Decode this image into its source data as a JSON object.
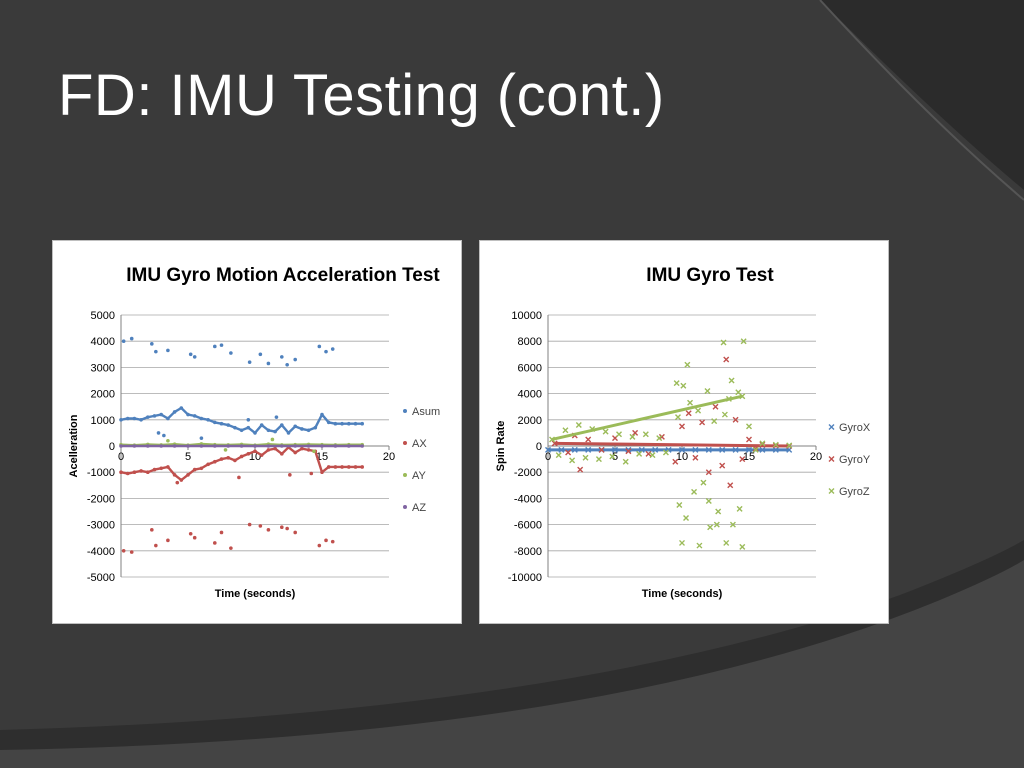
{
  "slide": {
    "title": "FD: IMU Testing (cont.)"
  },
  "colors": {
    "background": "#3a3a3a",
    "arc": "#2b2b2b",
    "arc_light": "#4a4a4a"
  },
  "chart_data": [
    {
      "type": "scatter",
      "title": "IMU Gyro Motion Acceleration Test",
      "xlabel": "Time (seconds)",
      "ylabel": "Acelleration",
      "xlim": [
        0,
        20
      ],
      "ylim": [
        -5000,
        5000
      ],
      "x_ticks": [
        "0",
        "5",
        "10",
        "15",
        "20"
      ],
      "y_ticks": [
        "5000",
        "4000",
        "3000",
        "2000",
        "1000",
        "0",
        "-1000",
        "-2000",
        "-3000",
        "-4000",
        "-5000"
      ],
      "grid": "horizontal",
      "legend": "right",
      "series": [
        {
          "name": "Asum",
          "color": "#4f81bd",
          "marker": "dot",
          "x": [
            0.0,
            0.5,
            1.0,
            1.5,
            2.0,
            2.5,
            3.0,
            3.5,
            4.0,
            4.5,
            5.0,
            5.5,
            6.0,
            6.5,
            7.0,
            7.5,
            8.0,
            8.5,
            9.0,
            9.5,
            10.0,
            10.5,
            11.0,
            11.5,
            12.0,
            12.5,
            13.0,
            13.5,
            14.0,
            14.5,
            15.0,
            15.5,
            16.0,
            16.5,
            17.0,
            17.5,
            18.0,
            0.2,
            0.8,
            2.3,
            2.6,
            3.5,
            5.2,
            5.5,
            7.0,
            7.5,
            8.2,
            9.6,
            10.4,
            11.0,
            12.0,
            12.4,
            13.0,
            14.8,
            15.3,
            15.8,
            2.8,
            3.2,
            6.0,
            9.5,
            11.6
          ],
          "y": [
            1000,
            1050,
            1050,
            1000,
            1100,
            1150,
            1200,
            1050,
            1300,
            1450,
            1200,
            1150,
            1050,
            1000,
            900,
            850,
            800,
            700,
            600,
            700,
            500,
            800,
            600,
            550,
            800,
            500,
            750,
            650,
            600,
            700,
            1200,
            900,
            850,
            850,
            850,
            850,
            850,
            4000,
            4100,
            3900,
            3600,
            3650,
            3500,
            3400,
            3800,
            3850,
            3550,
            3200,
            3500,
            3150,
            3400,
            3100,
            3300,
            3800,
            3600,
            3700,
            500,
            400,
            300,
            1000,
            1100
          ]
        },
        {
          "name": "AX",
          "color": "#c0504d",
          "marker": "dot",
          "x": [
            0.0,
            0.5,
            1.0,
            1.5,
            2.0,
            2.5,
            3.0,
            3.5,
            4.0,
            4.5,
            5.0,
            5.5,
            6.0,
            6.5,
            7.0,
            7.5,
            8.0,
            8.5,
            9.0,
            9.5,
            10.0,
            10.5,
            11.0,
            11.5,
            12.0,
            12.5,
            13.0,
            13.5,
            14.0,
            14.5,
            15.0,
            15.5,
            16.0,
            16.5,
            17.0,
            17.5,
            18.0,
            0.2,
            0.8,
            2.3,
            2.6,
            3.5,
            5.2,
            5.5,
            7.0,
            7.5,
            8.2,
            9.6,
            10.4,
            11.0,
            12.0,
            12.4,
            13.0,
            14.8,
            15.3,
            15.8,
            4.2,
            8.8,
            12.6,
            14.2
          ],
          "y": [
            -1000,
            -1050,
            -1000,
            -950,
            -1000,
            -900,
            -850,
            -800,
            -1100,
            -1300,
            -1100,
            -900,
            -850,
            -700,
            -600,
            -500,
            -450,
            -550,
            -400,
            -300,
            -200,
            -350,
            -150,
            -100,
            -300,
            -50,
            -250,
            -100,
            -150,
            -200,
            -1000,
            -800,
            -800,
            -800,
            -800,
            -800,
            -800,
            -4000,
            -4050,
            -3200,
            -3800,
            -3600,
            -3350,
            -3500,
            -3700,
            -3300,
            -3900,
            -3000,
            -3050,
            -3200,
            -3100,
            -3150,
            -3300,
            -3800,
            -3600,
            -3650,
            -1400,
            -1200,
            -1100,
            -1050
          ]
        },
        {
          "name": "AY",
          "color": "#9bbb59",
          "marker": "dot",
          "x": [
            0,
            1,
            2,
            3,
            4,
            5,
            6,
            7,
            8,
            9,
            10,
            11,
            12,
            13,
            14,
            15,
            16,
            17,
            18,
            3.5,
            7.8,
            11.3,
            14.4
          ],
          "y": [
            50,
            30,
            60,
            40,
            70,
            30,
            80,
            50,
            40,
            60,
            30,
            70,
            40,
            50,
            60,
            50,
            40,
            50,
            50,
            200,
            -150,
            250,
            -200
          ]
        },
        {
          "name": "AZ",
          "color": "#8064a2",
          "marker": "dot",
          "x": [
            0,
            1,
            2,
            3,
            4,
            5,
            6,
            7,
            8,
            9,
            10,
            11,
            12,
            13,
            14,
            15,
            16,
            17,
            18
          ],
          "y": [
            0,
            0,
            0,
            0,
            0,
            0,
            0,
            0,
            0,
            0,
            0,
            0,
            0,
            0,
            0,
            0,
            0,
            0,
            0
          ]
        }
      ]
    },
    {
      "type": "scatter",
      "title": "IMU Gyro Test",
      "xlabel": "Time (seconds)",
      "ylabel": "Spin Rate",
      "xlim": [
        0,
        20
      ],
      "ylim": [
        -10000,
        10000
      ],
      "x_ticks": [
        "0",
        "5",
        "10",
        "15",
        "20"
      ],
      "y_ticks": [
        "10000",
        "8000",
        "6000",
        "4000",
        "2000",
        "0",
        "-2000",
        "-4000",
        "-6000",
        "-8000",
        "-10000"
      ],
      "grid": "horizontal",
      "legend": "right",
      "series": [
        {
          "name": "GyroX",
          "color": "#4f81bd",
          "marker": "x",
          "x": [
            0,
            1,
            2,
            3,
            4,
            5,
            6,
            7,
            8,
            9,
            10,
            11,
            12,
            13,
            14,
            15,
            16,
            17,
            18
          ],
          "y": [
            -300,
            -300,
            -300,
            -300,
            -300,
            -300,
            -300,
            -300,
            -300,
            -300,
            -300,
            -300,
            -300,
            -300,
            -300,
            -300,
            -300,
            -300,
            -300
          ]
        },
        {
          "name": "GyroY",
          "color": "#c0504d",
          "marker": "x",
          "x": [
            0.5,
            1.5,
            2.0,
            2.4,
            3.0,
            4.0,
            5.0,
            6.0,
            6.5,
            7.5,
            8.5,
            9.5,
            10.0,
            10.5,
            11.0,
            11.5,
            12.0,
            12.5,
            13.0,
            13.3,
            13.6,
            14.0,
            14.5,
            15.0,
            15.5,
            16.0,
            17.0,
            18.0
          ],
          "y": [
            200,
            -500,
            800,
            -1800,
            500,
            -300,
            600,
            -400,
            1000,
            -600,
            700,
            -1200,
            1500,
            2500,
            -900,
            1800,
            -2000,
            3000,
            -1500,
            6600,
            -3000,
            2000,
            -1000,
            500,
            -200,
            100,
            50,
            0
          ]
        },
        {
          "name": "GyroZ",
          "color": "#9bbb59",
          "marker": "x",
          "x": [
            0.3,
            0.8,
            1.3,
            1.8,
            2.3,
            2.8,
            3.3,
            3.8,
            4.3,
            4.8,
            5.3,
            5.8,
            6.3,
            6.8,
            7.3,
            7.8,
            8.3,
            8.8,
            9.6,
            9.8,
            10.1,
            10.3,
            10.6,
            10.9,
            11.2,
            11.6,
            11.9,
            12.1,
            12.4,
            12.7,
            13.1,
            13.3,
            13.5,
            13.8,
            14.2,
            14.5,
            14.6,
            15.0,
            15.5,
            16.0,
            17.0,
            18.0,
            9.7,
            10.4,
            11.3,
            12.0,
            13.2,
            14.3,
            10.0,
            12.6,
            13.7,
            14.5
          ],
          "y": [
            500,
            -700,
            1200,
            -1100,
            1600,
            -900,
            1300,
            -1000,
            1100,
            -800,
            900,
            -1200,
            700,
            -600,
            900,
            -700,
            600,
            -500,
            4800,
            -4500,
            4600,
            -5500,
            3300,
            -3500,
            2700,
            -2800,
            4200,
            -6200,
            1900,
            -5000,
            7900,
            -7400,
            3600,
            -6000,
            4100,
            -7700,
            8000,
            1500,
            -300,
            200,
            100,
            50,
            2200,
            6200,
            -7600,
            -4200,
            2400,
            -4800,
            -7400,
            -6000,
            5000,
            3800
          ]
        }
      ]
    }
  ]
}
